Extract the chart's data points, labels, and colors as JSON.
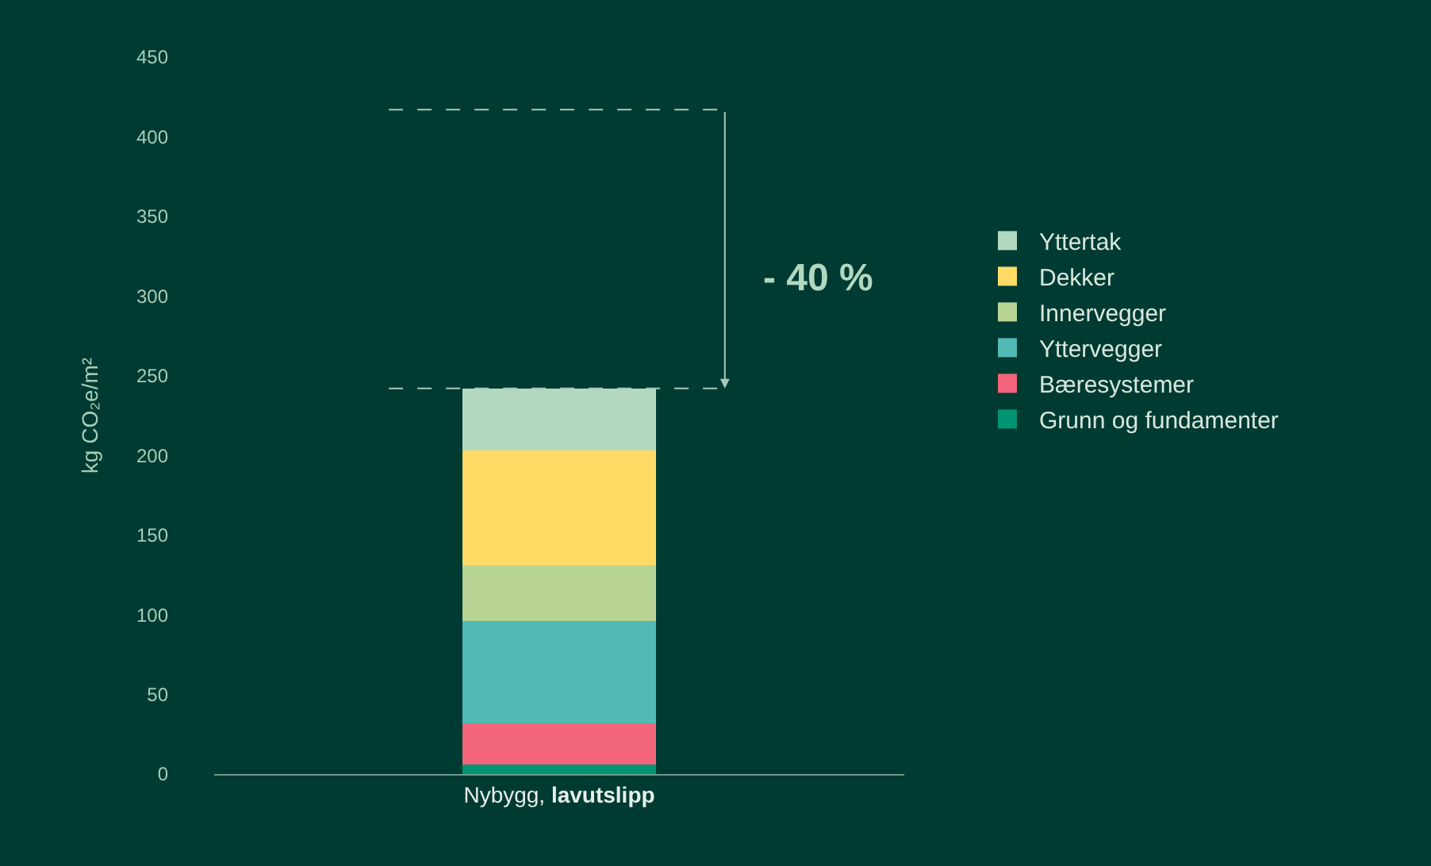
{
  "chart_data": {
    "type": "bar",
    "stacked": true,
    "categories": [
      "Nybygg, lavutslipp"
    ],
    "series": [
      {
        "name": "Grunn og fundamenter",
        "color": "#009473",
        "values": [
          6
        ]
      },
      {
        "name": "Bæresystemer",
        "color": "#f2657a",
        "values": [
          26
        ]
      },
      {
        "name": "Yttervegger",
        "color": "#52b9b4",
        "values": [
          64
        ]
      },
      {
        "name": "Innervegger",
        "color": "#b8d494",
        "values": [
          35
        ]
      },
      {
        "name": "Dekker",
        "color": "#ffdb66",
        "values": [
          72
        ]
      },
      {
        "name": "Yttertak",
        "color": "#b2d8c0",
        "values": [
          39
        ]
      }
    ],
    "ylabel": "kg CO₂e/m²",
    "ylim": [
      0,
      450
    ],
    "yticks": [
      0,
      50,
      100,
      150,
      200,
      250,
      300,
      350,
      400,
      450
    ],
    "grid": false,
    "legend": "right",
    "ref_lines": [
      {
        "axis": "y",
        "value": 417,
        "color": "#a9c9b8",
        "line_style": "dashed"
      },
      {
        "axis": "y",
        "value": 242,
        "color": "#a9c9b8",
        "line_style": "dashed"
      }
    ],
    "annotations": [
      "- 40 %"
    ]
  }
}
